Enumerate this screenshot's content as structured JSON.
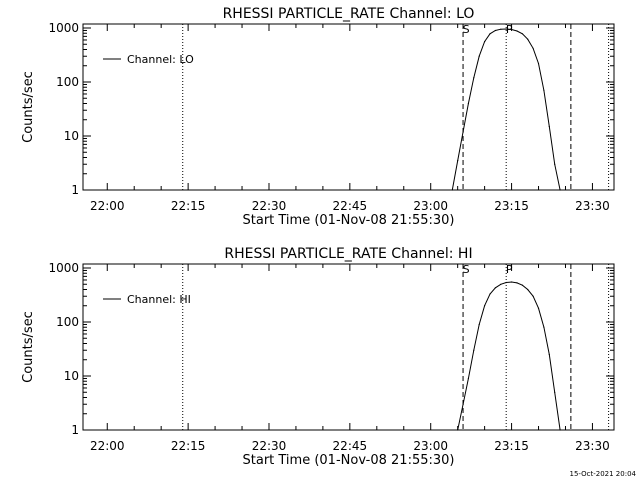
{
  "chart_data": [
    {
      "type": "line",
      "title": "RHESSI PARTICLE_RATE Channel: LO",
      "xlabel": "Start Time (01-Nov-08 21:55:30)",
      "ylabel": "Counts/sec",
      "yscale": "log",
      "ylim": [
        1,
        1000
      ],
      "xlim_minutes": [
        0,
        98.5
      ],
      "x_ticks": [
        "22:00",
        "22:15",
        "22:30",
        "22:45",
        "23:00",
        "23:15",
        "23:30"
      ],
      "y_ticks": [
        "1",
        "10",
        "100",
        "1000"
      ],
      "legend": {
        "label": "Channel: LO",
        "placement": "top-left"
      },
      "markers": [
        {
          "label": "S",
          "x": "23:06",
          "style": "dashed"
        },
        {
          "label": "P",
          "x": "23:14",
          "style": "dotted"
        }
      ],
      "vlines": [
        {
          "x": "22:14",
          "style": "dotted"
        },
        {
          "x": "23:14",
          "style": "dotted"
        },
        {
          "x": "23:06",
          "style": "dashed"
        },
        {
          "x": "23:26",
          "style": "dashed"
        },
        {
          "x": "23:33",
          "style": "dotted"
        }
      ],
      "series": [
        {
          "name": "Channel: LO",
          "x": [
            "23:04",
            "23:05",
            "23:06",
            "23:07",
            "23:08",
            "23:09",
            "23:10",
            "23:11",
            "23:12",
            "23:13",
            "23:14",
            "23:15",
            "23:16",
            "23:17",
            "23:18",
            "23:19",
            "23:20",
            "23:21",
            "23:22",
            "23:23",
            "23:24"
          ],
          "y": [
            1,
            3.5,
            12,
            40,
            120,
            300,
            560,
            780,
            900,
            950,
            960,
            940,
            880,
            780,
            620,
            420,
            220,
            70,
            15,
            3,
            1
          ]
        }
      ]
    },
    {
      "type": "line",
      "title": "RHESSI PARTICLE_RATE Channel: HI",
      "xlabel": "Start Time (01-Nov-08 21:55:30)",
      "ylabel": "Counts/sec",
      "yscale": "log",
      "ylim": [
        1,
        1000
      ],
      "xlim_minutes": [
        0,
        98.5
      ],
      "x_ticks": [
        "22:00",
        "22:15",
        "22:30",
        "22:45",
        "23:00",
        "23:15",
        "23:30"
      ],
      "y_ticks": [
        "1",
        "10",
        "100",
        "1000"
      ],
      "legend": {
        "label": "Channel: HI",
        "placement": "top-left"
      },
      "markers": [
        {
          "label": "S",
          "x": "23:06",
          "style": "dashed"
        },
        {
          "label": "P",
          "x": "23:14",
          "style": "dotted"
        }
      ],
      "vlines": [
        {
          "x": "22:14",
          "style": "dotted"
        },
        {
          "x": "23:14",
          "style": "dotted"
        },
        {
          "x": "23:06",
          "style": "dashed"
        },
        {
          "x": "23:26",
          "style": "dashed"
        },
        {
          "x": "23:33",
          "style": "dotted"
        }
      ],
      "series": [
        {
          "name": "Channel: HI",
          "x": [
            "23:05",
            "23:06",
            "23:07",
            "23:08",
            "23:09",
            "23:10",
            "23:11",
            "23:12",
            "23:13",
            "23:14",
            "23:15",
            "23:16",
            "23:17",
            "23:18",
            "23:19",
            "23:20",
            "23:21",
            "23:22",
            "23:23",
            "23:24"
          ],
          "y": [
            1,
            3,
            9,
            30,
            90,
            200,
            330,
            430,
            500,
            540,
            550,
            530,
            480,
            400,
            300,
            180,
            80,
            25,
            5,
            1
          ]
        }
      ]
    }
  ],
  "timestamp": "15-Oct-2021 20:04"
}
